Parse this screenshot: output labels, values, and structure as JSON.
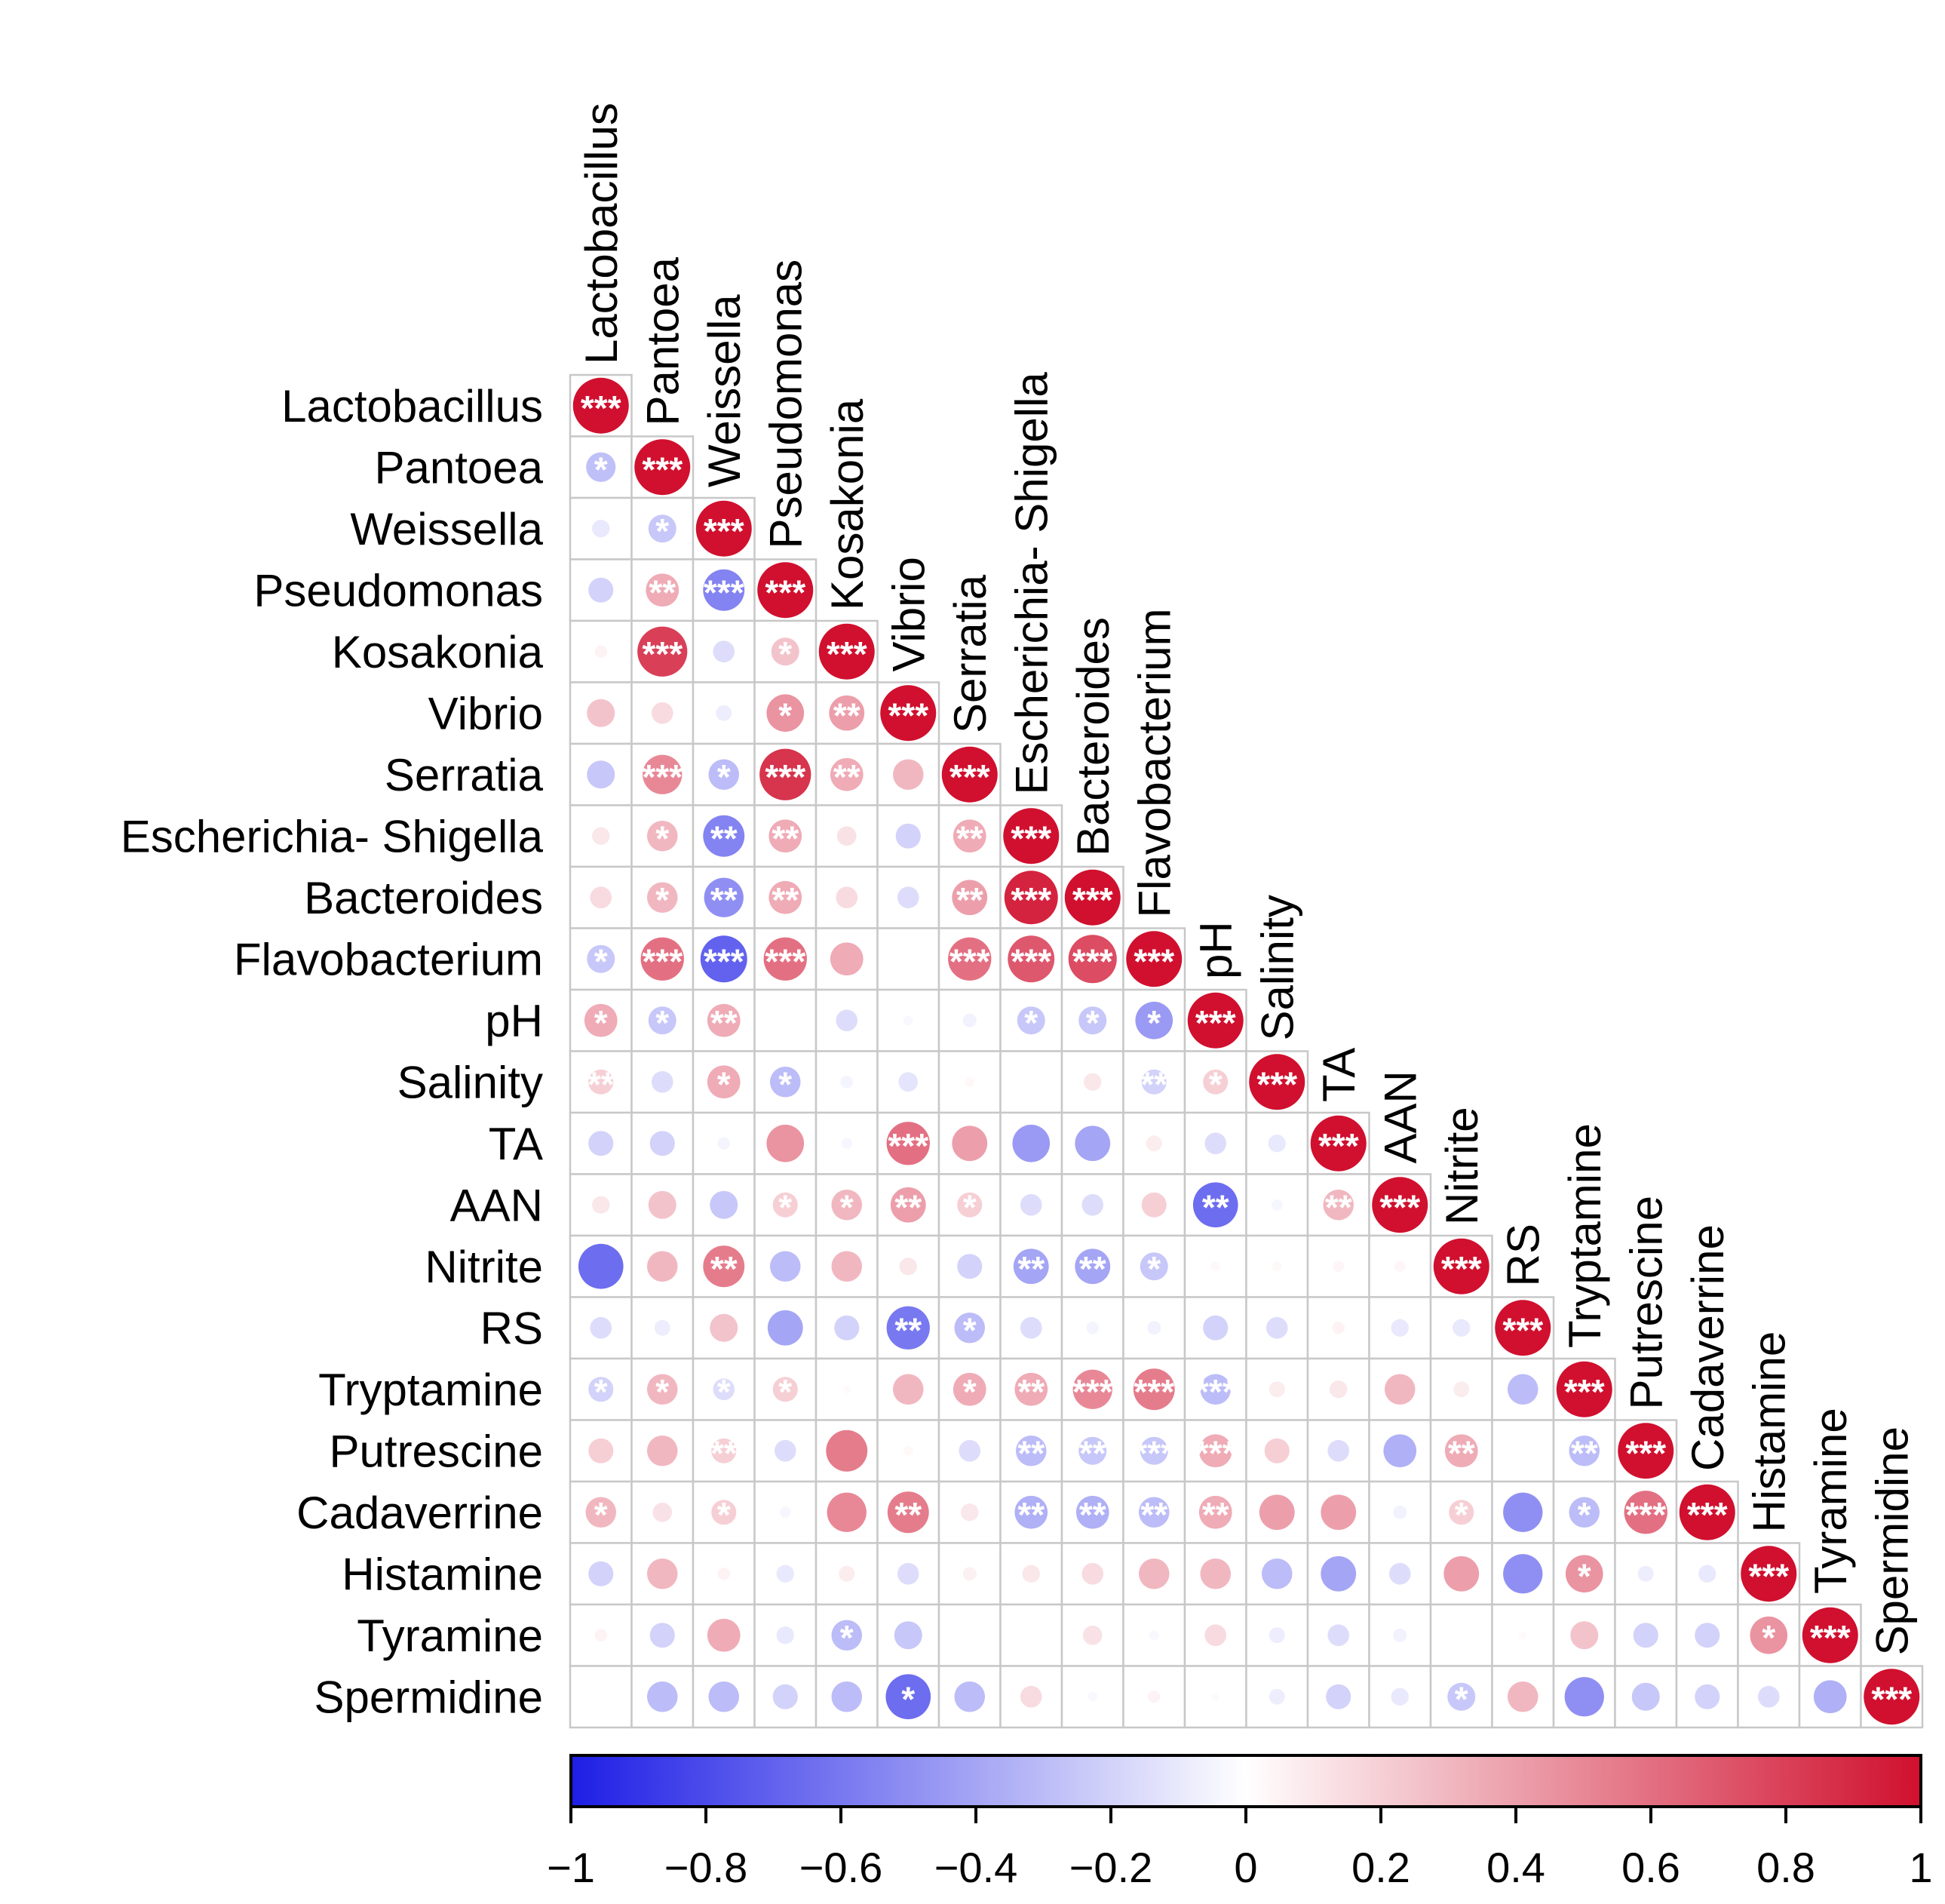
{
  "chart_data": {
    "type": "heatmap",
    "variables": [
      "Lactobacillus",
      "Pantoea",
      "Weissella",
      "Pseudomonas",
      "Kosakonia",
      "Vibrio",
      "Serratia",
      "Escherichia- Shigella",
      "Bacteroides",
      "Flavobacterium",
      "pH",
      "Salinity",
      "TA",
      "AAN",
      "Nitrite",
      "RS",
      "Tryptamine",
      "Putrescine",
      "Cadaverrine",
      "Histamine",
      "Tyramine",
      "Spermidine"
    ],
    "matrix": [
      [
        1
      ],
      [
        -0.28,
        1
      ],
      [
        -0.1,
        -0.25,
        1
      ],
      [
        -0.2,
        0.35,
        -0.55,
        1
      ],
      [
        0.05,
        0.8,
        -0.15,
        0.25,
        1
      ],
      [
        0.25,
        0.15,
        -0.08,
        0.45,
        0.4,
        1
      ],
      [
        -0.25,
        0.5,
        -0.3,
        0.85,
        0.35,
        0.3,
        1
      ],
      [
        0.1,
        0.3,
        -0.55,
        0.35,
        0.12,
        -0.2,
        0.35,
        1
      ],
      [
        0.15,
        0.3,
        -0.5,
        0.35,
        0.15,
        -0.15,
        0.4,
        0.92,
        1
      ],
      [
        -0.25,
        0.6,
        -0.7,
        0.6,
        0.35,
        0,
        0.6,
        0.7,
        0.75,
        1
      ],
      [
        0.35,
        -0.25,
        0.35,
        0,
        -0.15,
        -0.03,
        -0.06,
        -0.25,
        -0.25,
        -0.45,
        1
      ],
      [
        0.2,
        -0.15,
        0.35,
        -0.3,
        -0.05,
        -0.12,
        0.03,
        0,
        0.1,
        -0.2,
        0.2,
        1
      ],
      [
        -0.2,
        -0.2,
        -0.05,
        0.45,
        -0.04,
        0.6,
        0.4,
        -0.45,
        -0.4,
        0.08,
        -0.15,
        -0.1,
        1
      ],
      [
        0.1,
        0.25,
        -0.25,
        0.2,
        0.3,
        0.4,
        0.2,
        -0.15,
        -0.15,
        0.2,
        -0.65,
        -0.04,
        0.3,
        1
      ],
      [
        -0.65,
        0.3,
        0.55,
        -0.3,
        0.3,
        0.1,
        -0.2,
        -0.4,
        -0.4,
        -0.25,
        0.03,
        0.03,
        0.04,
        0.04,
        1
      ],
      [
        -0.15,
        -0.08,
        0.25,
        -0.4,
        -0.2,
        -0.6,
        -0.3,
        -0.15,
        -0.05,
        -0.06,
        -0.2,
        -0.15,
        0.05,
        -0.1,
        -0.1,
        1
      ],
      [
        -0.2,
        0.3,
        -0.15,
        0.2,
        0.02,
        0.3,
        0.35,
        0.35,
        0.5,
        0.55,
        -0.3,
        0.08,
        0.1,
        0.3,
        0.08,
        -0.3,
        1
      ],
      [
        0.2,
        0.3,
        0.2,
        -0.15,
        0.55,
        0.03,
        -0.15,
        -0.3,
        -0.25,
        -0.25,
        0.35,
        0.2,
        -0.15,
        -0.35,
        0.35,
        0,
        -0.3,
        1
      ],
      [
        0.3,
        0.12,
        0.2,
        -0.04,
        0.5,
        0.55,
        0.1,
        -0.35,
        -0.35,
        -0.3,
        0.35,
        0.4,
        0.4,
        -0.06,
        0.2,
        -0.5,
        -0.3,
        0.6,
        1
      ],
      [
        -0.2,
        0.3,
        0.05,
        -0.1,
        0.08,
        -0.15,
        0.06,
        0.1,
        0.15,
        0.3,
        0.3,
        -0.3,
        -0.4,
        -0.15,
        0.4,
        -0.5,
        0.45,
        -0.08,
        -0.1,
        1
      ],
      [
        0.05,
        -0.2,
        0.35,
        -0.1,
        -0.3,
        -0.25,
        0,
        0,
        0.12,
        -0.03,
        0.15,
        -0.08,
        -0.15,
        -0.06,
        0,
        0.02,
        0.25,
        -0.2,
        -0.2,
        0.45,
        1
      ],
      [
        0,
        -0.3,
        -0.3,
        -0.2,
        -0.3,
        -0.65,
        -0.3,
        0.15,
        -0.03,
        0.05,
        -0.02,
        -0.08,
        -0.2,
        -0.1,
        -0.25,
        0.3,
        -0.5,
        -0.25,
        -0.2,
        -0.15,
        -0.35,
        1
      ]
    ],
    "significance": [
      [
        "***"
      ],
      [
        "*",
        "***"
      ],
      [
        "",
        "*",
        "***"
      ],
      [
        "",
        "**",
        "***",
        "***"
      ],
      [
        "",
        "***",
        "",
        "*",
        "***"
      ],
      [
        "",
        "",
        "",
        "*",
        "**",
        "***"
      ],
      [
        "",
        "***",
        "*",
        "***",
        "**",
        "",
        "***"
      ],
      [
        "",
        "*",
        "**",
        "**",
        "",
        "",
        "**",
        "***"
      ],
      [
        "",
        "*",
        "**",
        "**",
        "",
        "",
        "**",
        "***",
        "***"
      ],
      [
        "*",
        "***",
        "***",
        "***",
        "",
        "",
        "***",
        "***",
        "***",
        "***"
      ],
      [
        "*",
        "*",
        "**",
        "",
        "",
        "",
        "",
        "*",
        "*",
        "*",
        "***"
      ],
      [
        "**",
        "",
        "*",
        "*",
        "",
        "",
        "",
        "",
        "",
        "**",
        "*",
        "***"
      ],
      [
        "",
        "",
        "",
        "",
        "",
        "***",
        "",
        "",
        "",
        "",
        "",
        "",
        "***"
      ],
      [
        "",
        "",
        "",
        "*",
        "*",
        "**",
        "*",
        "",
        "",
        "",
        "**",
        "",
        "**",
        "***"
      ],
      [
        "",
        "",
        "**",
        "",
        "",
        "",
        "",
        "**",
        "**",
        "*",
        "",
        "",
        "",
        "",
        "***"
      ],
      [
        "",
        "",
        "",
        "",
        "",
        "**",
        "*",
        "",
        "",
        "",
        "",
        "",
        "",
        "",
        "",
        "***"
      ],
      [
        "*",
        "*",
        "*",
        "*",
        "",
        "",
        "*",
        "**",
        "***",
        "***",
        "***",
        "",
        "",
        "",
        "",
        "",
        "***"
      ],
      [
        "",
        "",
        "**",
        "",
        "",
        "",
        "",
        "**",
        "**",
        "***",
        "***",
        "",
        "",
        "",
        "**",
        "",
        "**",
        "***"
      ],
      [
        "*",
        "",
        "*",
        "",
        "",
        "**",
        "",
        "**",
        "**",
        "**",
        "**",
        "",
        "",
        "",
        "*",
        "",
        "*",
        "***",
        "***"
      ],
      [
        "",
        "",
        "",
        "",
        "",
        "",
        "",
        "",
        "",
        "",
        "",
        "",
        "",
        "",
        "",
        "",
        "*",
        "",
        "",
        "***"
      ],
      [
        "",
        "",
        "",
        "",
        "*",
        "",
        "",
        "",
        "",
        "",
        "",
        "",
        "",
        "",
        "",
        "",
        "",
        "",
        "",
        "*",
        "***"
      ],
      [
        "",
        "",
        "",
        "",
        "",
        "*",
        "",
        "",
        "",
        "",
        "",
        "",
        "",
        "",
        "*",
        "",
        "",
        "",
        "",
        "",
        "",
        "***"
      ]
    ],
    "colorbar": {
      "ticks": [
        "−1",
        "−0.8",
        "−0.6",
        "−0.4",
        "−0.2",
        "0",
        "0.2",
        "0.4",
        "0.6",
        "0.8",
        "1"
      ],
      "range": [
        -1,
        1
      ],
      "colors": {
        "negative": "#1E1EE6",
        "zero": "#FFFFFF",
        "positive": "#D0102E"
      }
    }
  }
}
